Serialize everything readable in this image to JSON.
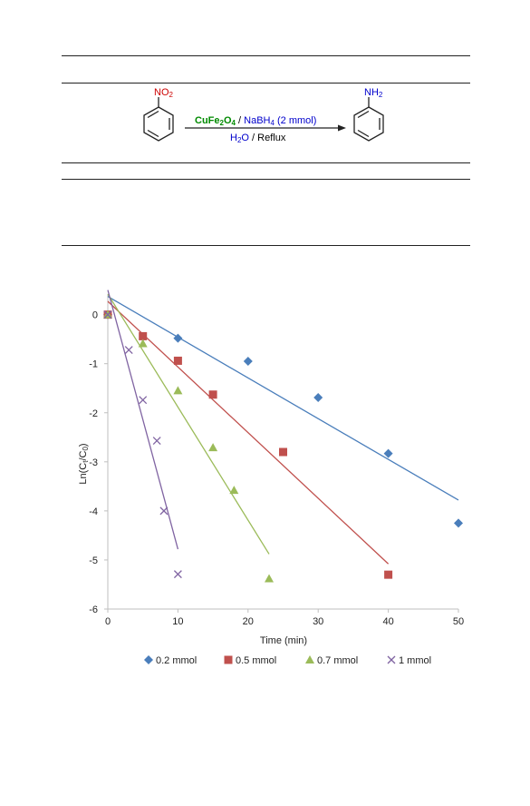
{
  "scheme": {
    "reactant_label": "NO",
    "reactant_sub": "2",
    "product_label": "NH",
    "product_sub": "2",
    "catalyst_a": "CuFe",
    "catalyst_a_sub1": "2",
    "catalyst_a_mid": "O",
    "catalyst_a_sub2": "4",
    "separator": " / ",
    "reagent_b": "NaBH",
    "reagent_b_sub": "4",
    "reagent_b_amount": " (2 mmol)",
    "solvent": "H",
    "solvent_sub": "2",
    "solvent_rest": "O",
    "condition": " / Reflux",
    "colors": {
      "nitro": "#cc0000",
      "amine": "#0000cc",
      "catalyst": "#008a00",
      "reagent": "#0000cc"
    }
  },
  "chart_data": {
    "type": "scatter",
    "xlabel": "Time (min)",
    "ylabel": "Ln(Ct/C0)",
    "ylabel_main": "Ln(C",
    "ylabel_sub1": "t",
    "ylabel_mid": "/C",
    "ylabel_sub2": "0",
    "ylabel_end": ")",
    "xlim": [
      0,
      50
    ],
    "ylim": [
      -6,
      0.4
    ],
    "xticks": [
      0,
      10,
      20,
      30,
      40,
      50
    ],
    "yticks": [
      0,
      -1,
      -2,
      -3,
      -4,
      -5,
      -6
    ],
    "grid": false,
    "legend_position": "bottom",
    "series": [
      {
        "name": "0.2 mmol",
        "color": "#4a7ebb",
        "marker": "diamond",
        "x": [
          0,
          10,
          20,
          30,
          40,
          50
        ],
        "y": [
          0,
          -0.48,
          -0.95,
          -1.69,
          -2.83,
          -4.25
        ],
        "fit": {
          "x0": 0,
          "y0": 0.37,
          "x1": 50,
          "y1": -3.78
        }
      },
      {
        "name": "0.5 mmol",
        "color": "#c0504d",
        "marker": "square",
        "x": [
          0,
          5,
          10,
          15,
          25,
          40
        ],
        "y": [
          0,
          -0.44,
          -0.94,
          -1.63,
          -2.8,
          -5.3
        ],
        "fit": {
          "x0": 0,
          "y0": 0.27,
          "x1": 40,
          "y1": -5.08
        }
      },
      {
        "name": "0.7 mmol",
        "color": "#9bbb59",
        "marker": "triangle",
        "x": [
          0,
          5,
          10,
          15,
          18,
          23
        ],
        "y": [
          0,
          -0.59,
          -1.55,
          -2.71,
          -3.58,
          -5.38
        ],
        "fit": {
          "x0": 0,
          "y0": 0.42,
          "x1": 23,
          "y1": -4.88
        }
      },
      {
        "name": "1 mmol",
        "color": "#8064a2",
        "marker": "x",
        "x": [
          0,
          3,
          5,
          7,
          8,
          10
        ],
        "y": [
          0,
          -0.72,
          -1.74,
          -2.57,
          -4.0,
          -5.29
        ],
        "fit": {
          "x0": 0,
          "y0": 0.5,
          "x1": 10,
          "y1": -4.78
        }
      }
    ]
  }
}
